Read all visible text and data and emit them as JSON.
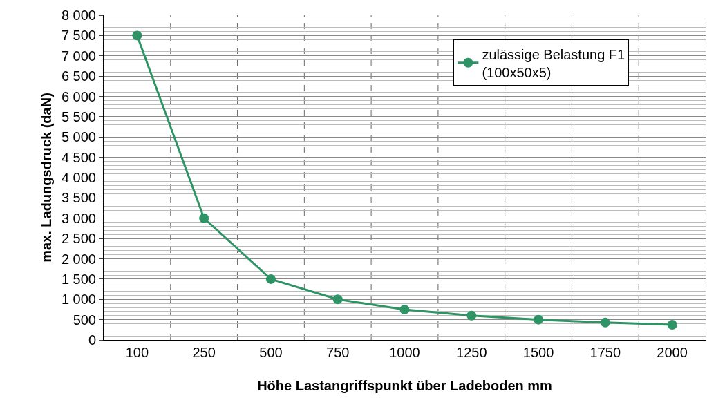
{
  "chart_data": {
    "type": "line",
    "xlabel": "Höhe Lastangriffspunkt über Ladeboden mm",
    "ylabel": "max. Ladungsdruck (daN)",
    "categories": [
      "100",
      "250",
      "500",
      "750",
      "1000",
      "1250",
      "1500",
      "1750",
      "2000"
    ],
    "series": [
      {
        "name": "zulässige Belastung F1\n(100x50x5)",
        "color": "#2e9465",
        "values": [
          7500,
          3000,
          1500,
          1000,
          750,
          600,
          500,
          430,
          375
        ]
      }
    ],
    "ylim": [
      0,
      8000
    ],
    "yticks": [
      0,
      500,
      {
        "value": 1000,
        "label": "1 000"
      },
      {
        "value": 1500,
        "label": "1 500"
      },
      {
        "value": 2000,
        "label": "2 000"
      },
      {
        "value": 2500,
        "label": "2 500"
      },
      {
        "value": 3000,
        "label": "3 000"
      },
      {
        "value": 3500,
        "label": "3 500"
      },
      {
        "value": 4000,
        "label": "4 000"
      },
      {
        "value": 4500,
        "label": "4 500"
      },
      {
        "value": 5000,
        "label": "5 000"
      },
      {
        "value": 5500,
        "label": "5 500"
      },
      {
        "value": 6000,
        "label": "6 000"
      },
      {
        "value": 6500,
        "label": "6 500"
      },
      {
        "value": 7000,
        "label": "7 000"
      },
      {
        "value": 7500,
        "label": "7 500"
      },
      {
        "value": 8000,
        "label": "8 000"
      }
    ],
    "grid": true,
    "legend": "top right",
    "marker": "circle",
    "line_style": "solid"
  }
}
